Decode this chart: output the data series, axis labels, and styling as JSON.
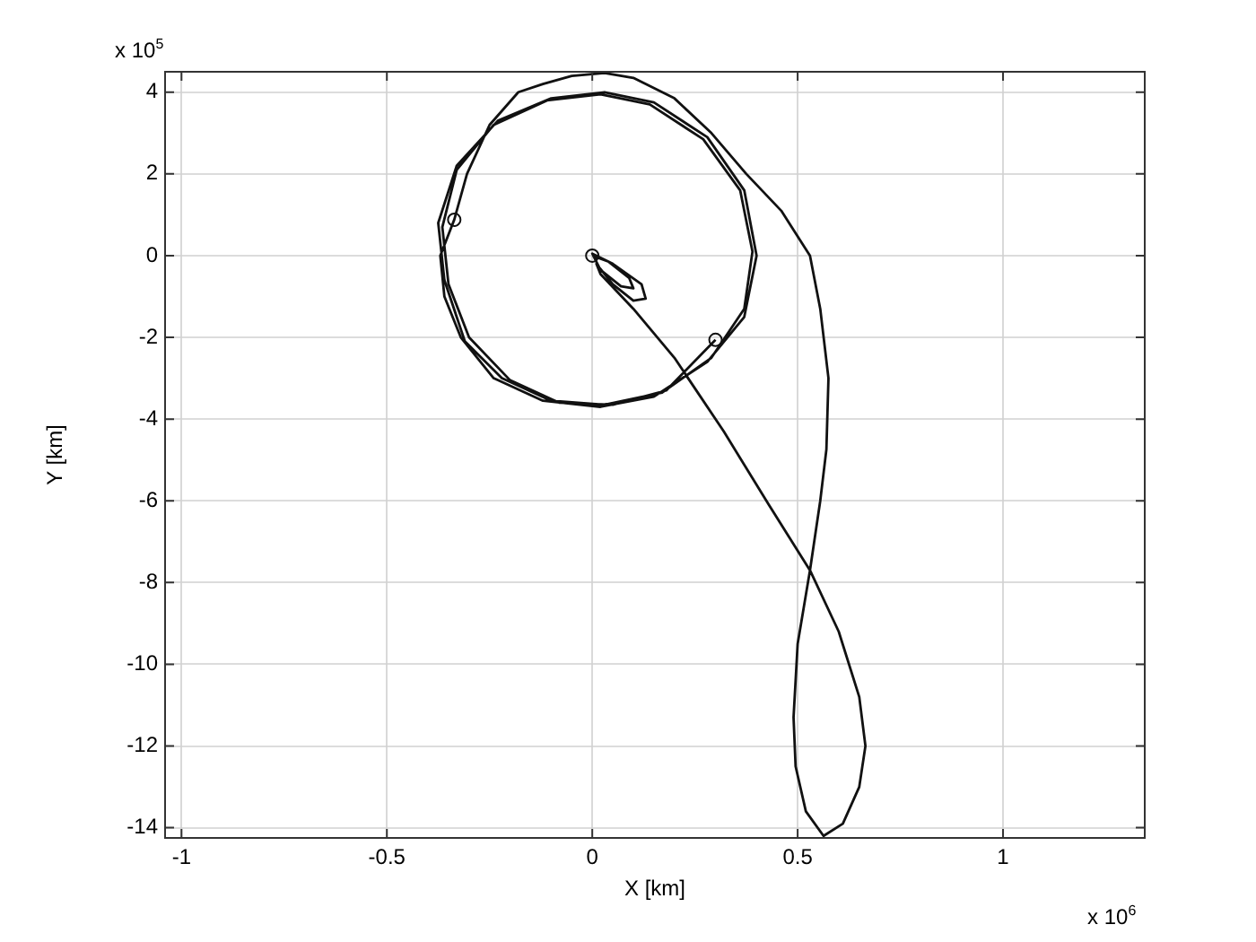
{
  "chart_data": {
    "type": "line",
    "xlabel": "X [km]",
    "ylabel": "Y [km]",
    "annotations": [
      "x 10$^{5}$",
      "x 10$^{6}$"
    ],
    "xlim": [
      -1.04,
      1.345
    ],
    "xticks": [
      -1,
      -0.5,
      0,
      0.5,
      1
    ],
    "ylim": [
      -14.25,
      4.5
    ],
    "yticks": [
      4,
      2,
      0,
      -2,
      -4,
      -6,
      -8,
      -10,
      -12,
      -14
    ],
    "grid": true,
    "legend": false,
    "marker": "none",
    "line_style": "solid",
    "series": [
      {
        "color": "#111111",
        "x": [
          0,
          0.04,
          0.09,
          0.1,
          0.07,
          0.02,
          0,
          0.05,
          0.12,
          0.13,
          0.1,
          0.05,
          0.01,
          0.02,
          0.1,
          0.2,
          0.32,
          0.43,
          0.53,
          0.6,
          0.65,
          0.665,
          0.65,
          0.61,
          0.563,
          0.52,
          0.495,
          0.49,
          0.5,
          0.53,
          0.555,
          0.57,
          0.575,
          0.555,
          0.53,
          0.46,
          0.375,
          0.29,
          0.2,
          0.1,
          0.03,
          -0.05,
          -0.12,
          -0.18,
          -0.25,
          -0.305,
          -0.336,
          -0.37,
          -0.36,
          -0.32,
          -0.24,
          -0.12,
          0.02,
          0.15,
          0.28,
          0.37,
          0.4,
          0.37,
          0.28,
          0.15,
          0.03,
          -0.1,
          -0.23,
          -0.33,
          -0.375,
          -0.36,
          -0.31,
          -0.22,
          -0.1,
          0.03,
          0.17,
          0.29,
          0.37,
          0.39,
          0.36,
          0.27,
          0.14,
          0.02,
          -0.11,
          -0.24,
          -0.33,
          -0.365,
          -0.35,
          -0.3,
          -0.2,
          -0.08,
          0.05,
          0.18,
          0.3
        ],
        "values": [
          0,
          -0.15,
          -0.55,
          -0.8,
          -0.75,
          -0.35,
          0.05,
          -0.2,
          -0.7,
          -1.05,
          -1.1,
          -0.7,
          -0.2,
          -0.45,
          -1.3,
          -2.5,
          -4.3,
          -6.1,
          -7.7,
          -9.2,
          -10.8,
          -12,
          -13,
          -13.9,
          -14.2,
          -13.6,
          -12.5,
          -11.3,
          -9.5,
          -7.7,
          -6,
          -4.74,
          -3,
          -1.3,
          0,
          1.1,
          2,
          3,
          3.85,
          4.35,
          4.47,
          4.4,
          4.2,
          4,
          3.2,
          2,
          0.88,
          0,
          -1,
          -2,
          -3,
          -3.55,
          -3.7,
          -3.45,
          -2.6,
          -1.5,
          0,
          1.6,
          2.9,
          3.75,
          4,
          3.85,
          3.3,
          2.2,
          0.8,
          -0.6,
          -2.1,
          -3,
          -3.55,
          -3.65,
          -3.35,
          -2.5,
          -1.3,
          0.1,
          1.6,
          2.85,
          3.7,
          3.95,
          3.8,
          3.2,
          2.1,
          0.7,
          -0.7,
          -2,
          -3.05,
          -3.6,
          -3.65,
          -3.3,
          -2.06
        ]
      },
      {
        "type": "scatter",
        "color": "#111111",
        "marker": "circle",
        "x": [
          -0.336,
          0.3,
          0
        ],
        "values": [
          0.88,
          -2.06,
          0
        ]
      }
    ]
  }
}
